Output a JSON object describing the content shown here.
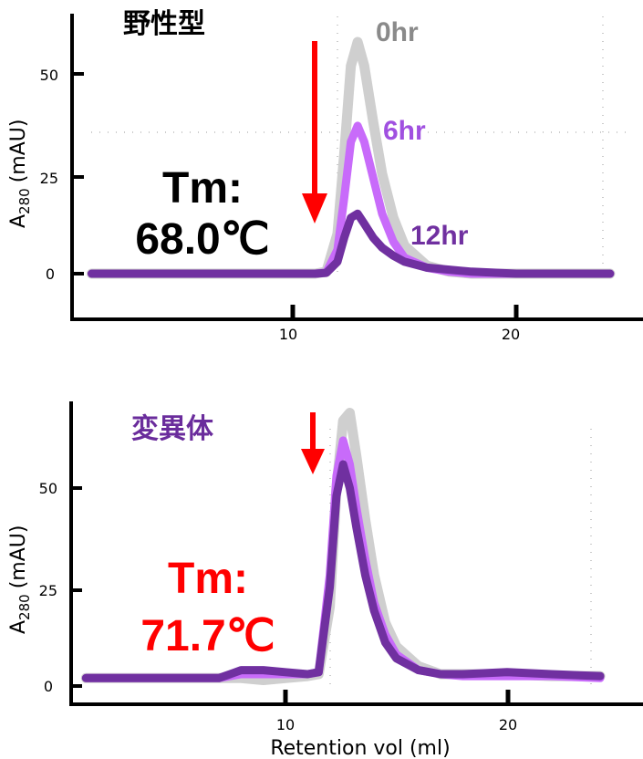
{
  "chart_data": [
    {
      "type": "line",
      "title": "野性型",
      "xlabel": "",
      "ylabel": {
        "main": "A",
        "sub": "280",
        "unit": "(mAU)"
      },
      "xticks": [
        "10",
        "20"
      ],
      "yticks": [
        "0",
        "25",
        "50"
      ],
      "xlim": [
        0,
        25.5
      ],
      "ylim": [
        -12,
        65
      ],
      "annotation": {
        "line1": "Tm:",
        "line2": "68.0℃",
        "color": "#000000"
      },
      "x": [
        1,
        2,
        4,
        6,
        8,
        10,
        11,
        11.5,
        12,
        12.3,
        12.6,
        12.9,
        13.2,
        13.6,
        14,
        14.5,
        15,
        16,
        17,
        18,
        20,
        22,
        24.2
      ],
      "series": [
        {
          "name": "0hr",
          "color": "#cfcfcf",
          "label_color": "#8a8a8a",
          "values": [
            0,
            0,
            0,
            0,
            0,
            0,
            0,
            0.5,
            10,
            30,
            52,
            58,
            52,
            38,
            25,
            14,
            7,
            2,
            0.5,
            0,
            0,
            0,
            0
          ]
        },
        {
          "name": "6hr",
          "color": "#c86bfa",
          "label_color": "#a050e0",
          "values": [
            0,
            0,
            0,
            0,
            0,
            0,
            0,
            0.3,
            6,
            19,
            33,
            37,
            33,
            24,
            15,
            8,
            4,
            1.5,
            0.5,
            0,
            0,
            0,
            0
          ]
        },
        {
          "name": "12hr",
          "color": "#7030a0",
          "label_color": "#7030a0",
          "values": [
            0,
            0,
            0,
            0,
            0,
            0,
            0,
            0.2,
            3,
            9,
            14,
            15,
            12.5,
            9,
            6.5,
            4.5,
            3,
            1.5,
            1,
            0.5,
            0,
            0,
            0
          ]
        }
      ]
    },
    {
      "type": "line",
      "title": "変異体",
      "xlabel": "Retention vol (ml)",
      "ylabel": {
        "main": "A",
        "sub": "280",
        "unit": "(mAU)"
      },
      "xticks": [
        "10",
        "20"
      ],
      "yticks": [
        "0",
        "25",
        "50"
      ],
      "xlim": [
        0,
        26
      ],
      "ylim": [
        -5,
        72
      ],
      "annotation": {
        "line1": "Tm:",
        "line2": "71.7℃",
        "color": "#ff0000"
      },
      "x": [
        1,
        2,
        4,
        6,
        7,
        7.5,
        8,
        9,
        10,
        11,
        11.5,
        12,
        12.3,
        12.6,
        12.9,
        13.2,
        13.6,
        14,
        14.5,
        15,
        16,
        17,
        18,
        20,
        22,
        24.2
      ],
      "series": [
        {
          "name": "0hr",
          "color": "#cfcfcf",
          "values": [
            2,
            2,
            2,
            2,
            2,
            2,
            2,
            1.5,
            2,
            2.5,
            3,
            20,
            50,
            67,
            69,
            58,
            42,
            28,
            16,
            10,
            5,
            3,
            3,
            3,
            2.5,
            2.5
          ]
        },
        {
          "name": "6hr",
          "color": "#c86bfa",
          "values": [
            2,
            2,
            2,
            2,
            2,
            2.5,
            3,
            3,
            3,
            3,
            3.5,
            28,
            53,
            62,
            56,
            45,
            32,
            21,
            13,
            8,
            4,
            3,
            2.5,
            2.5,
            2.5,
            2
          ]
        },
        {
          "name": "12hr",
          "color": "#7030a0",
          "values": [
            2,
            2,
            2,
            2,
            2,
            3,
            4,
            4,
            3.5,
            3,
            3.5,
            25,
            48,
            56,
            50,
            40,
            28,
            19,
            11,
            7,
            4,
            3,
            3,
            3.5,
            3,
            2.5
          ]
        }
      ]
    }
  ]
}
